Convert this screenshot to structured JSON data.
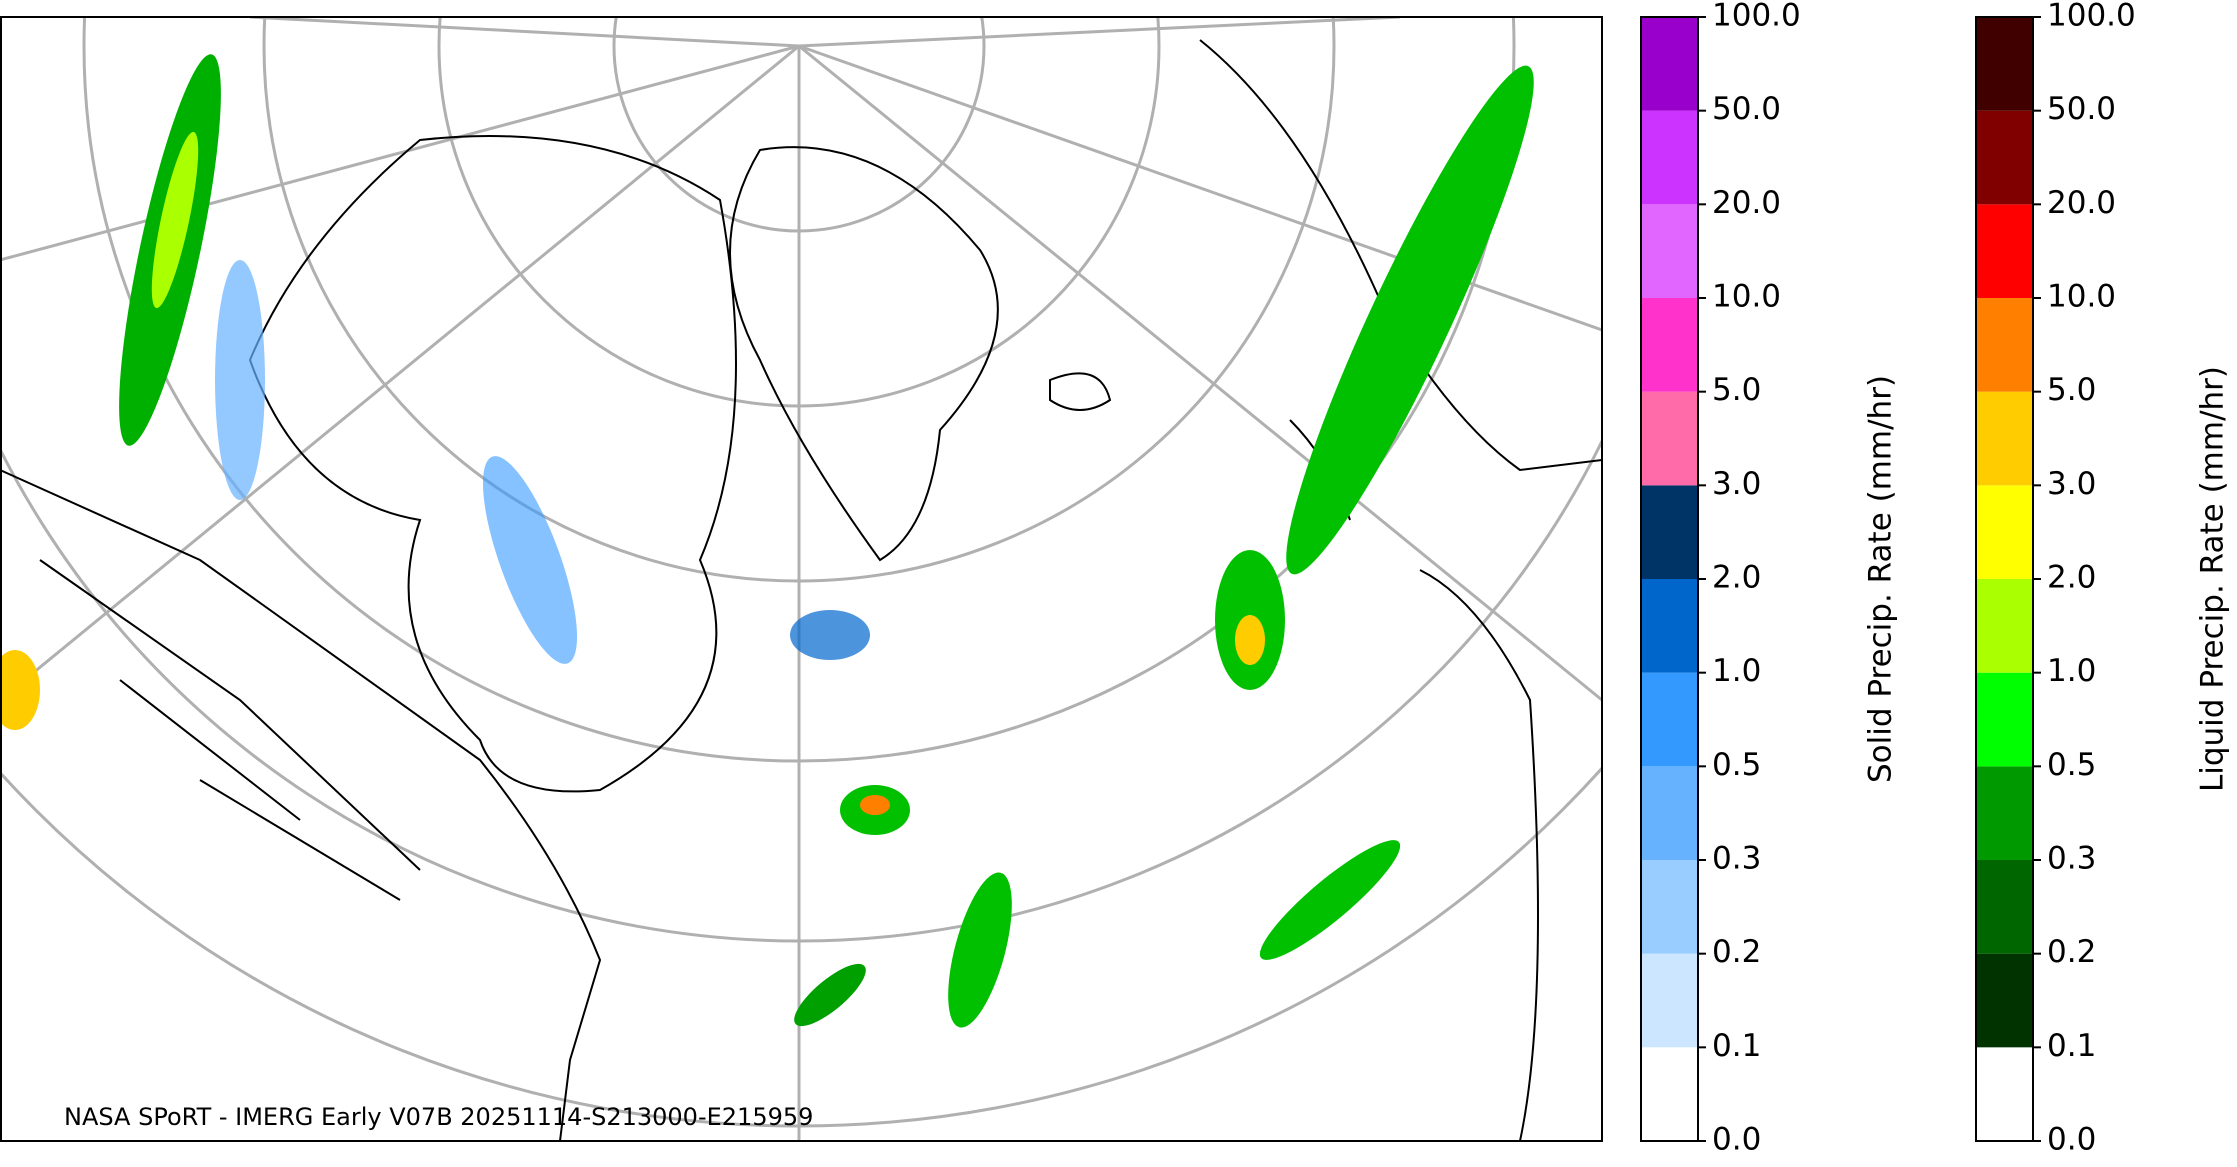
{
  "caption": "NASA SPoRT - IMERG Early V07B 20251114-S213000-E215959",
  "colorbars": [
    {
      "label": "Solid Precip. Rate (mm/hr)",
      "colors": [
        "#ffffff",
        "#cce6ff",
        "#99ccff",
        "#66b2ff",
        "#3399ff",
        "#0066cc",
        "#003366",
        "#ff6aa8",
        "#ff33cc",
        "#e066ff",
        "#cc33ff",
        "#9900cc"
      ],
      "ticks": [
        {
          "value": 0,
          "label": "0.0"
        },
        {
          "value": 0.1,
          "label": "0.1"
        },
        {
          "value": 0.2,
          "label": "0.2"
        },
        {
          "value": 0.3,
          "label": "0.3"
        },
        {
          "value": 0.5,
          "label": "0.5"
        },
        {
          "value": 1,
          "label": "1.0"
        },
        {
          "value": 2,
          "label": "2.0"
        },
        {
          "value": 3,
          "label": "3.0"
        },
        {
          "value": 5,
          "label": "5.0"
        },
        {
          "value": 10,
          "label": "10.0"
        },
        {
          "value": 20,
          "label": "20.0"
        },
        {
          "value": 50,
          "label": "50.0"
        },
        {
          "value": 100,
          "label": "100.0"
        }
      ]
    },
    {
      "label": "Liquid Precip. Rate (mm/hr)",
      "colors": [
        "#ffffff",
        "#003300",
        "#006600",
        "#009900",
        "#00ff00",
        "#aaff00",
        "#ffff00",
        "#ffcc00",
        "#ff8000",
        "#ff0000",
        "#800000",
        "#400000"
      ],
      "ticks": [
        {
          "value": 0,
          "label": "0.0"
        },
        {
          "value": 0.1,
          "label": "0.1"
        },
        {
          "value": 0.2,
          "label": "0.2"
        },
        {
          "value": 0.3,
          "label": "0.3"
        },
        {
          "value": 0.5,
          "label": "0.5"
        },
        {
          "value": 1,
          "label": "1.0"
        },
        {
          "value": 2,
          "label": "2.0"
        },
        {
          "value": 3,
          "label": "3.0"
        },
        {
          "value": 5,
          "label": "5.0"
        },
        {
          "value": 10,
          "label": "10.0"
        },
        {
          "value": 20,
          "label": "20.0"
        },
        {
          "value": 50,
          "label": "50.0"
        },
        {
          "value": 100,
          "label": "100.0"
        }
      ]
    }
  ]
}
